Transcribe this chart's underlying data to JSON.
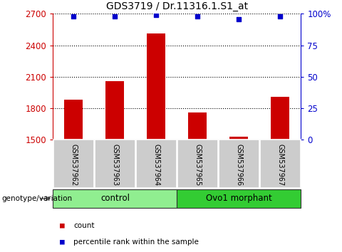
{
  "title": "GDS3719 / Dr.11316.1.S1_at",
  "samples": [
    "GSM537962",
    "GSM537963",
    "GSM537964",
    "GSM537965",
    "GSM537966",
    "GSM537967"
  ],
  "counts": [
    1880,
    2060,
    2510,
    1760,
    1530,
    1910
  ],
  "percentiles": [
    98,
    98,
    99,
    98,
    96,
    98
  ],
  "ylim_left": [
    1500,
    2700
  ],
  "ylim_right": [
    0,
    100
  ],
  "yticks_left": [
    1500,
    1800,
    2100,
    2400,
    2700
  ],
  "yticks_right": [
    0,
    25,
    50,
    75,
    100
  ],
  "ytick_labels_right": [
    "0",
    "25",
    "50",
    "75",
    "100%"
  ],
  "bar_color": "#cc0000",
  "dot_color": "#0000cc",
  "groups": [
    {
      "label": "control",
      "indices": [
        0,
        1,
        2
      ],
      "color": "#90ee90"
    },
    {
      "label": "Ovo1 morphant",
      "indices": [
        3,
        4,
        5
      ],
      "color": "#33cc33"
    }
  ],
  "group_label": "genotype/variation",
  "legend_count_label": "count",
  "legend_percentile_label": "percentile rank within the sample",
  "bar_width": 0.45,
  "figsize": [
    4.8,
    3.54
  ],
  "dpi": 100
}
